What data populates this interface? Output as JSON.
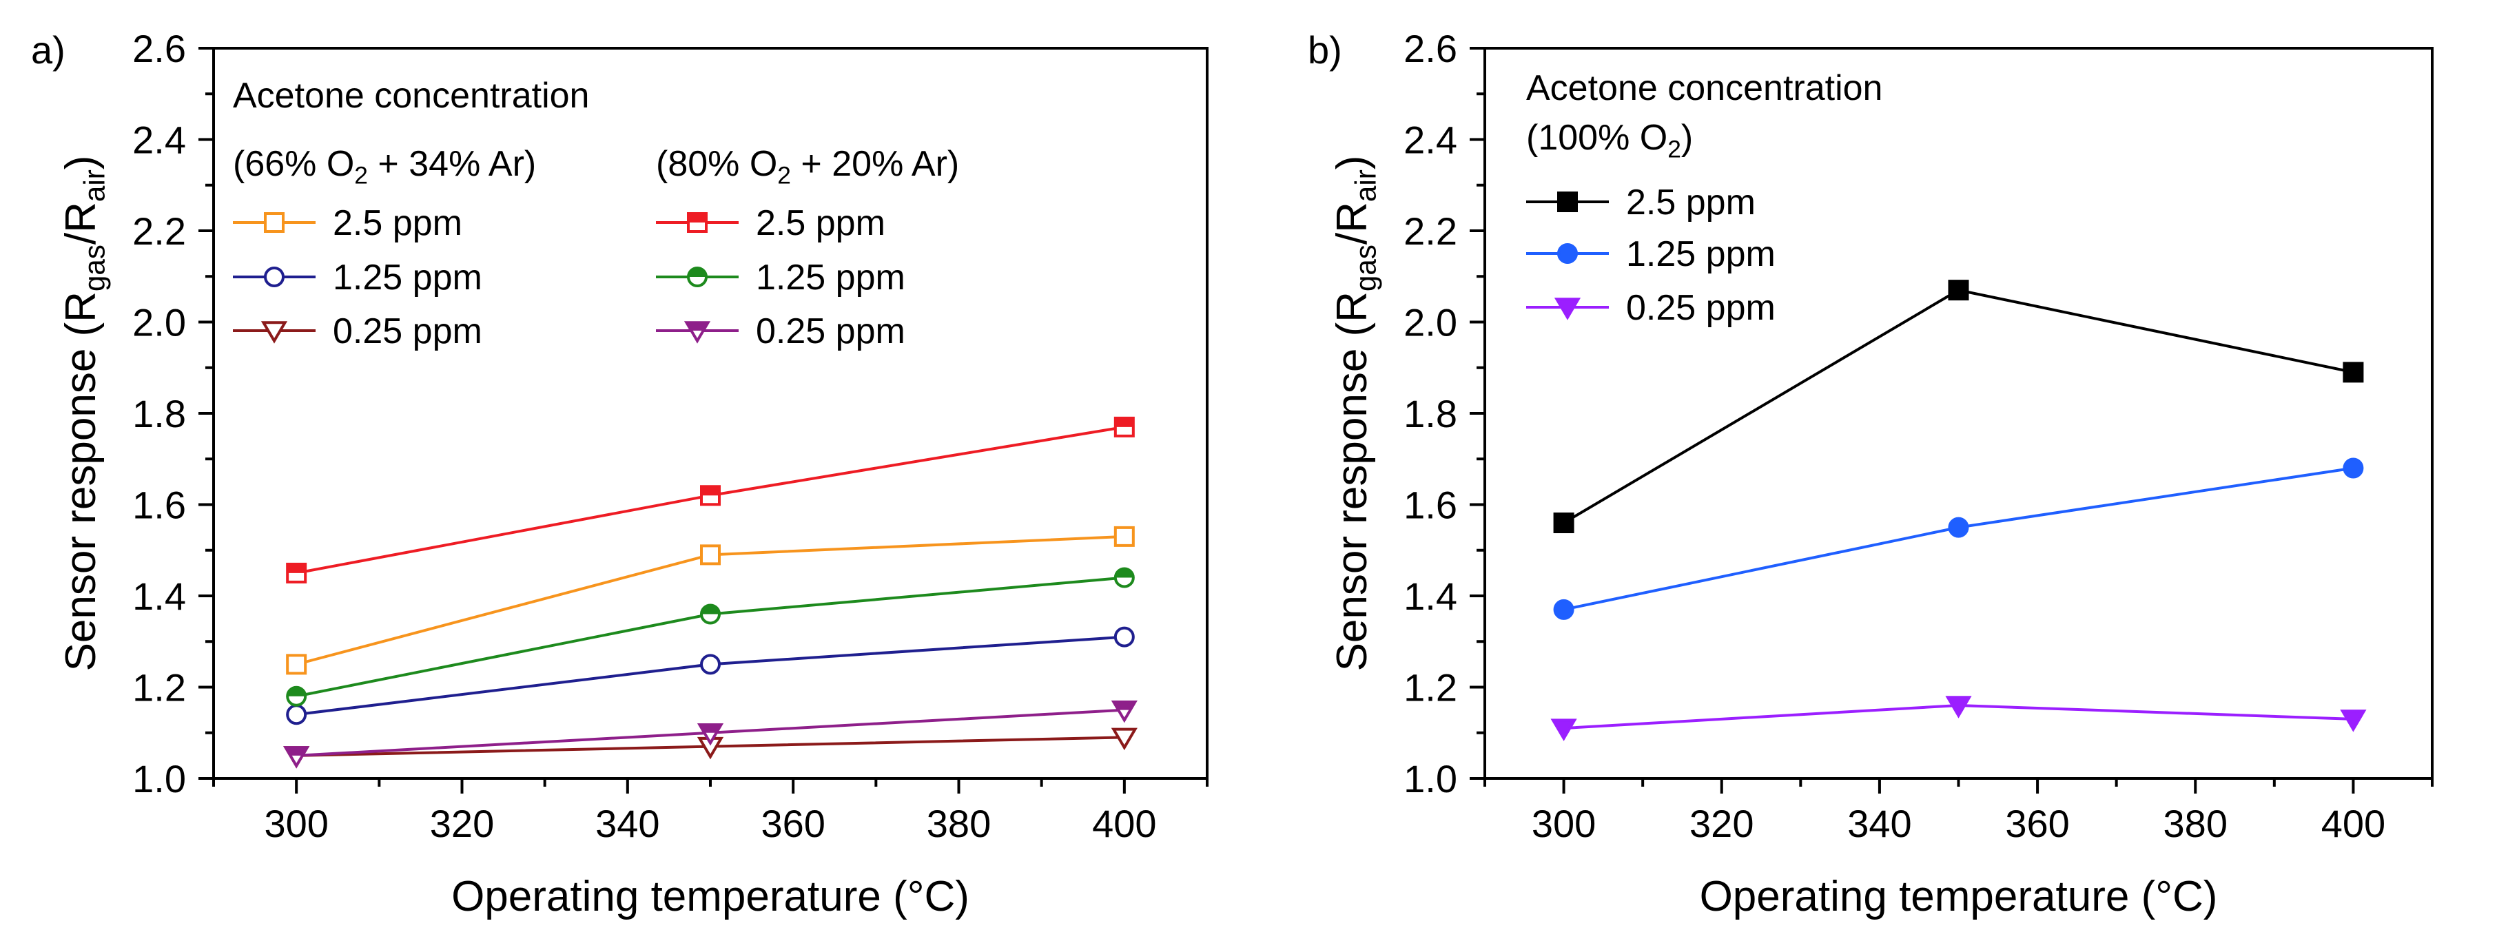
{
  "chart_data": [
    {
      "type": "line",
      "panel_label": "a)",
      "xlabel": "Operating temperature (°C)",
      "ylabel": {
        "main": "Sensor response (R",
        "sub1": "gas",
        "mid": "/R",
        "sub2": "air",
        "end": ")"
      },
      "xlim": [
        290,
        410
      ],
      "ylim": [
        1.0,
        2.6
      ],
      "xticks": [
        300,
        320,
        340,
        360,
        380,
        400
      ],
      "yticks": [
        1.0,
        1.2,
        1.4,
        1.6,
        1.8,
        2.0,
        2.2,
        2.4,
        2.6
      ],
      "x": [
        300,
        350,
        400
      ],
      "legend_title": "Acetone concentration",
      "legend_groups": [
        {
          "header": {
            "pre": "(66% O",
            "sub": "2",
            "post": " + 34% Ar)"
          }
        },
        {
          "header": {
            "pre": "(80% O",
            "sub": "2",
            "post": " + 20% Ar)"
          }
        }
      ],
      "series": [
        {
          "name": "2.5 ppm",
          "group": 0,
          "color": "#f7941d",
          "marker": "square",
          "fill": "open",
          "values": [
            1.25,
            1.49,
            1.53
          ]
        },
        {
          "name": "1.25 ppm",
          "group": 0,
          "color": "#1f1f8f",
          "marker": "circle",
          "fill": "open",
          "values": [
            1.14,
            1.25,
            1.31
          ]
        },
        {
          "name": "0.25 ppm",
          "group": 0,
          "color": "#8b1a1a",
          "marker": "triangle-down",
          "fill": "open",
          "values": [
            1.05,
            1.07,
            1.09
          ]
        },
        {
          "name": "2.5 ppm",
          "group": 1,
          "color": "#ee1c24",
          "marker": "square",
          "fill": "half",
          "values": [
            1.45,
            1.62,
            1.77
          ]
        },
        {
          "name": "1.25 ppm",
          "group": 1,
          "color": "#1d8a1d",
          "marker": "circle",
          "fill": "half",
          "values": [
            1.18,
            1.36,
            1.44
          ]
        },
        {
          "name": "0.25 ppm",
          "group": 1,
          "color": "#8e1f8a",
          "marker": "triangle-down",
          "fill": "half",
          "values": [
            1.05,
            1.1,
            1.15
          ]
        }
      ]
    },
    {
      "type": "line",
      "panel_label": "b)",
      "xlabel": "Operating temperature (°C)",
      "ylabel": {
        "main": "Sensor response (R",
        "sub1": "gas",
        "mid": "/R",
        "sub2": "air",
        "end": ")"
      },
      "xlim": [
        290,
        410
      ],
      "ylim": [
        1.0,
        2.6
      ],
      "xticks": [
        300,
        320,
        340,
        360,
        380,
        400
      ],
      "yticks": [
        1.0,
        1.2,
        1.4,
        1.6,
        1.8,
        2.0,
        2.2,
        2.4,
        2.6
      ],
      "x": [
        300,
        350,
        400
      ],
      "legend_title": "Acetone concentration",
      "legend_subtitle": {
        "pre": "(100% O",
        "sub": "2",
        "post": ")"
      },
      "series": [
        {
          "name": "2.5 ppm",
          "color": "#000000",
          "marker": "square",
          "fill": "solid",
          "values": [
            1.56,
            2.07,
            1.89
          ]
        },
        {
          "name": "1.25 ppm",
          "color": "#1f5fff",
          "marker": "circle",
          "fill": "solid",
          "values": [
            1.37,
            1.55,
            1.68
          ]
        },
        {
          "name": "0.25 ppm",
          "color": "#9b1fff",
          "marker": "triangle-down",
          "fill": "solid",
          "values": [
            1.11,
            1.16,
            1.13
          ]
        }
      ]
    }
  ]
}
